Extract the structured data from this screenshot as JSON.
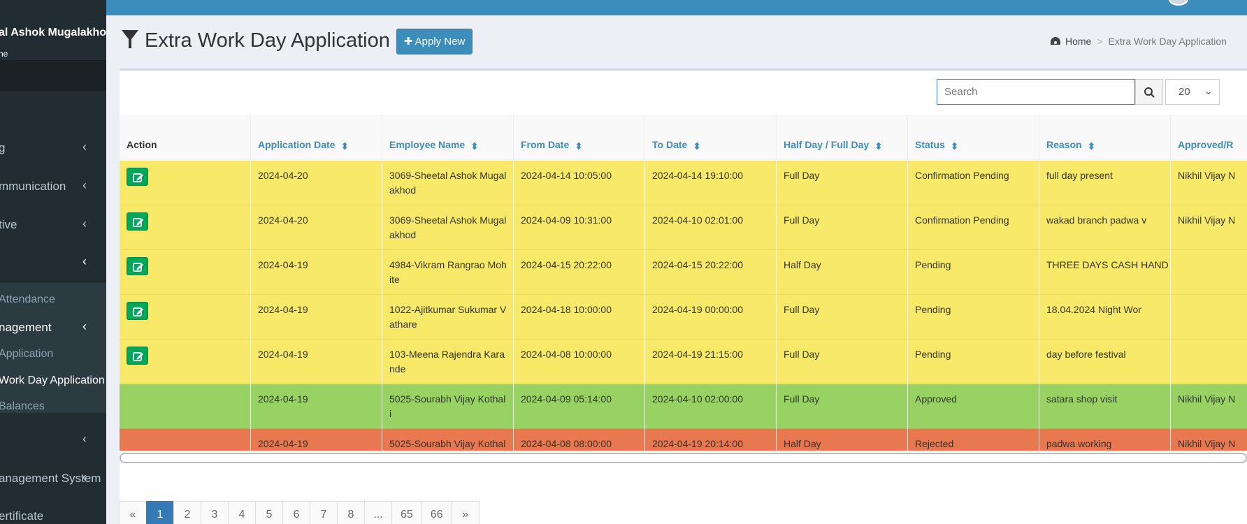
{
  "sidebar": {
    "user_name": "al Ashok Mugalakhod",
    "user_sub": "ne",
    "items": [
      {
        "label": "g"
      },
      {
        "label": "mmunication"
      },
      {
        "label": "tive"
      },
      {
        "label": ""
      },
      {
        "label": "Attendance"
      },
      {
        "label": "nagement"
      },
      {
        "label": "Application"
      },
      {
        "label": "Work Day Application"
      },
      {
        "label": "Balances"
      },
      {
        "label": ""
      },
      {
        "label": "anagement System"
      },
      {
        "label": "ertificate"
      }
    ]
  },
  "header": {
    "title": "Extra Work Day Application",
    "apply_label": "Apply New",
    "breadcrumb_home": "Home",
    "breadcrumb_current": "Extra Work Day Application"
  },
  "toolbar": {
    "search_placeholder": "Search",
    "per_page": "20"
  },
  "table": {
    "columns": [
      "Action",
      "Application Date",
      "Employee Name",
      "From Date",
      "To Date",
      "Half Day / Full Day",
      "Status",
      "Reason",
      "Approved/R"
    ],
    "rows": [
      {
        "app_date": "2024-04-20",
        "emp1": "3069-Sheetal Ashok Mugal",
        "emp2": "akhod",
        "from": "2024-04-14 10:05:00",
        "to": "2024-04-14 19:10:00",
        "day": "Full Day",
        "status": "Confirmation Pending",
        "reason": "full day present",
        "approved": "Nikhil Vijay N",
        "color": "#f8ea68",
        "editable": true
      },
      {
        "app_date": "2024-04-20",
        "emp1": "3069-Sheetal Ashok Mugal",
        "emp2": "akhod",
        "from": "2024-04-09 10:31:00",
        "to": "2024-04-10 02:01:00",
        "day": "Full Day",
        "status": "Confirmation Pending",
        "reason": "wakad branch padwa v",
        "approved": "Nikhil Vijay N",
        "color": "#f8ea68",
        "editable": true
      },
      {
        "app_date": "2024-04-19",
        "emp1": "4984-Vikram Rangrao Moh",
        "emp2": "ite",
        "from": "2024-04-15 20:22:00",
        "to": "2024-04-15 20:22:00",
        "day": "Half Day",
        "status": "Pending",
        "reason": "THREE DAYS CASH HAND",
        "approved": "",
        "color": "#f8ea68",
        "editable": true
      },
      {
        "app_date": "2024-04-19",
        "emp1": "1022-Ajitkumar Sukumar V",
        "emp2": "athare",
        "from": "2024-04-18 10:00:00",
        "to": "2024-04-19 00:00:00",
        "day": "Full Day",
        "status": "Pending",
        "reason": "18.04.2024 Night Wor",
        "approved": "",
        "color": "#f8ea68",
        "editable": true
      },
      {
        "app_date": "2024-04-19",
        "emp1": "103-Meena Rajendra Kara",
        "emp2": "nde",
        "from": "2024-04-08 10:00:00",
        "to": "2024-04-19 21:15:00",
        "day": "Full Day",
        "status": "Pending",
        "reason": "day before festival",
        "approved": "",
        "color": "#f8ea68",
        "editable": true
      },
      {
        "app_date": "2024-04-19",
        "emp1": "5025-Sourabh Vijay Kothal",
        "emp2": "i",
        "from": "2024-04-09 05:14:00",
        "to": "2024-04-10 02:00:00",
        "day": "Full Day",
        "status": "Approved",
        "reason": "satara shop visit",
        "approved": "Nikhil Vijay N",
        "color": "#97d262",
        "editable": false
      },
      {
        "app_date": "2024-04-19",
        "emp1": "5025-Sourabh Vijay Kothal",
        "emp2": "",
        "from": "2024-04-08 08:00:00",
        "to": "2024-04-19 20:14:00",
        "day": "Half Day",
        "status": "Rejected",
        "reason": "padwa working",
        "approved": "Nikhil Vijay N",
        "color": "#e8784f",
        "editable": false
      }
    ]
  },
  "pagination": [
    "«",
    "1",
    "2",
    "3",
    "4",
    "5",
    "6",
    "7",
    "8",
    "...",
    "65",
    "66",
    "»"
  ],
  "colors": {
    "accent": "#3c8dbc",
    "edit": "#00a65a",
    "pending": "#f8ea68",
    "approved": "#97d262",
    "rejected": "#e8784f"
  }
}
